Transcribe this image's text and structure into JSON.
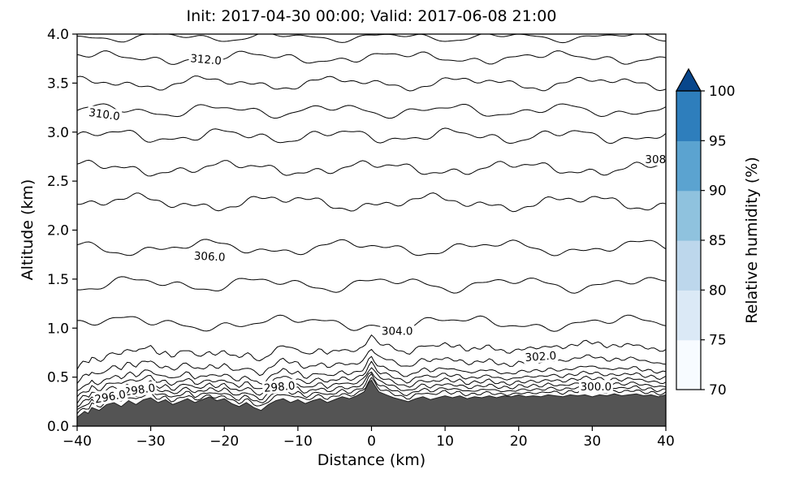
{
  "chart_data": {
    "type": "contour",
    "title": "Init: 2017-04-30 00:00; Valid: 2017-06-08 21:00",
    "xlabel": "Distance (km)",
    "ylabel": "Altitude (km)",
    "xlim": [
      -40,
      40
    ],
    "ylim": [
      0,
      4
    ],
    "grid": false,
    "line_color": "#000000",
    "xticks": [
      {
        "v": -40,
        "label": "−40"
      },
      {
        "v": -30,
        "label": "−30"
      },
      {
        "v": -20,
        "label": "−20"
      },
      {
        "v": -10,
        "label": "−10"
      },
      {
        "v": 0,
        "label": "0"
      },
      {
        "v": 10,
        "label": "10"
      },
      {
        "v": 20,
        "label": "20"
      },
      {
        "v": 30,
        "label": "30"
      },
      {
        "v": 40,
        "label": "40"
      }
    ],
    "yticks": [
      {
        "v": 0.0,
        "label": "0.0"
      },
      {
        "v": 0.5,
        "label": "0.5"
      },
      {
        "v": 1.0,
        "label": "1.0"
      },
      {
        "v": 1.5,
        "label": "1.5"
      },
      {
        "v": 2.0,
        "label": "2.0"
      },
      {
        "v": 2.5,
        "label": "2.5"
      },
      {
        "v": 3.0,
        "label": "3.0"
      },
      {
        "v": 3.5,
        "label": "3.5"
      },
      {
        "v": 4.0,
        "label": "4.0"
      }
    ],
    "levels": [
      {
        "level": 296,
        "off": 0.035,
        "amp": 0.018
      },
      {
        "level": 297,
        "off": 0.07,
        "amp": 0.02
      },
      {
        "level": 298,
        "off": 0.11,
        "amp": 0.024
      },
      {
        "level": 299,
        "off": 0.155,
        "amp": 0.028
      },
      {
        "level": 300,
        "off": 0.205,
        "amp": 0.032
      },
      {
        "level": 301,
        "off": 0.265,
        "amp": 0.036
      },
      {
        "level": 302,
        "off": 0.36,
        "amp": 0.045
      },
      {
        "level": 303,
        "off": 0.5,
        "amp": 0.05
      },
      {
        "level": 304,
        "alt": 1.05,
        "amp": 0.085
      },
      {
        "level": 305,
        "alt": 1.45,
        "amp": 0.09
      },
      {
        "level": 306,
        "alt": 1.82,
        "amp": 0.09
      },
      {
        "level": 307,
        "alt": 2.28,
        "amp": 0.095
      },
      {
        "level": 308,
        "alt": 2.63,
        "amp": 0.085
      },
      {
        "level": 309,
        "alt": 2.96,
        "amp": 0.085
      },
      {
        "level": 310,
        "alt": 3.22,
        "amp": 0.08
      },
      {
        "level": 311,
        "alt": 3.5,
        "amp": 0.08
      },
      {
        "level": 312,
        "alt": 3.76,
        "amp": 0.07
      },
      {
        "level": 313,
        "alt": 3.97,
        "amp": 0.055
      }
    ],
    "contour_labels": [
      {
        "text": "312.0",
        "x": -22.5,
        "alt": 3.74,
        "rot": 5
      },
      {
        "text": "310.0",
        "x": -36.3,
        "alt": 3.18,
        "rot": 8
      },
      {
        "text": "308",
        "x": 38.6,
        "alt": 2.72,
        "rot": 0
      },
      {
        "text": "306.0",
        "x": -22.0,
        "alt": 1.73,
        "rot": 3
      },
      {
        "text": "304.0",
        "x": 3.5,
        "alt": 0.97,
        "rot": 0
      },
      {
        "text": "302.0",
        "x": 23.0,
        "alt": 0.71,
        "rot": -4
      },
      {
        "text": "300.0",
        "x": 30.5,
        "alt": 0.4,
        "rot": 0
      },
      {
        "text": "298.0",
        "x": -12.5,
        "alt": 0.4,
        "rot": -5
      },
      {
        "text": "298.0",
        "x": -31.5,
        "alt": 0.37,
        "rot": -8
      },
      {
        "text": "296.0",
        "x": -35.5,
        "alt": 0.3,
        "rot": -10
      }
    ],
    "terrain": {
      "color": "#545454",
      "points": [
        [
          -40,
          0.09
        ],
        [
          -39,
          0.15
        ],
        [
          -38.5,
          0.13
        ],
        [
          -38,
          0.19
        ],
        [
          -37,
          0.16
        ],
        [
          -36,
          0.22
        ],
        [
          -35,
          0.24
        ],
        [
          -34,
          0.2
        ],
        [
          -33,
          0.26
        ],
        [
          -32,
          0.22
        ],
        [
          -31,
          0.27
        ],
        [
          -30,
          0.29
        ],
        [
          -29,
          0.24
        ],
        [
          -28,
          0.27
        ],
        [
          -27,
          0.22
        ],
        [
          -26,
          0.25
        ],
        [
          -25,
          0.28
        ],
        [
          -24,
          0.24
        ],
        [
          -23,
          0.27
        ],
        [
          -22,
          0.3
        ],
        [
          -21,
          0.26
        ],
        [
          -20,
          0.28
        ],
        [
          -19,
          0.23
        ],
        [
          -18,
          0.2
        ],
        [
          -17,
          0.24
        ],
        [
          -16,
          0.19
        ],
        [
          -15,
          0.16
        ],
        [
          -14,
          0.22
        ],
        [
          -13,
          0.26
        ],
        [
          -12,
          0.28
        ],
        [
          -11,
          0.24
        ],
        [
          -10,
          0.27
        ],
        [
          -9,
          0.23
        ],
        [
          -8,
          0.26
        ],
        [
          -7,
          0.28
        ],
        [
          -6,
          0.24
        ],
        [
          -5,
          0.27
        ],
        [
          -4,
          0.3
        ],
        [
          -3,
          0.28
        ],
        [
          -2,
          0.31
        ],
        [
          -1,
          0.35
        ],
        [
          -0.4,
          0.44
        ],
        [
          0,
          0.47
        ],
        [
          0.4,
          0.42
        ],
        [
          1,
          0.35
        ],
        [
          2,
          0.32
        ],
        [
          3,
          0.29
        ],
        [
          4,
          0.27
        ],
        [
          5,
          0.25
        ],
        [
          6,
          0.28
        ],
        [
          7,
          0.3
        ],
        [
          8,
          0.27
        ],
        [
          9,
          0.29
        ],
        [
          10,
          0.31
        ],
        [
          11,
          0.29
        ],
        [
          12,
          0.31
        ],
        [
          13,
          0.28
        ],
        [
          14,
          0.3
        ],
        [
          15,
          0.29
        ],
        [
          16,
          0.31
        ],
        [
          17,
          0.29
        ],
        [
          18,
          0.31
        ],
        [
          19,
          0.3
        ],
        [
          20,
          0.32
        ],
        [
          21,
          0.3
        ],
        [
          22,
          0.31
        ],
        [
          23,
          0.3
        ],
        [
          24,
          0.32
        ],
        [
          25,
          0.31
        ],
        [
          26,
          0.3
        ],
        [
          27,
          0.32
        ],
        [
          28,
          0.31
        ],
        [
          29,
          0.32
        ],
        [
          30,
          0.3
        ],
        [
          31,
          0.32
        ],
        [
          32,
          0.31
        ],
        [
          33,
          0.33
        ],
        [
          34,
          0.31
        ],
        [
          35,
          0.32
        ],
        [
          36,
          0.33
        ],
        [
          37,
          0.31
        ],
        [
          38,
          0.32
        ],
        [
          39,
          0.3
        ],
        [
          40,
          0.32
        ]
      ]
    },
    "colorbar": {
      "label": "Relative humidity (%)",
      "extend": "max",
      "extend_color": "#08468b",
      "colors": [
        "#f7fbff",
        "#dbe9f6",
        "#bdd7ec",
        "#8fc2de",
        "#5ba3d0",
        "#2e7ebc"
      ],
      "ticks": [
        {
          "v": 70,
          "label": "70"
        },
        {
          "v": 75,
          "label": "75"
        },
        {
          "v": 80,
          "label": "80"
        },
        {
          "v": 85,
          "label": "85"
        },
        {
          "v": 90,
          "label": "90"
        },
        {
          "v": 95,
          "label": "95"
        },
        {
          "v": 100,
          "label": "100"
        }
      ]
    }
  }
}
